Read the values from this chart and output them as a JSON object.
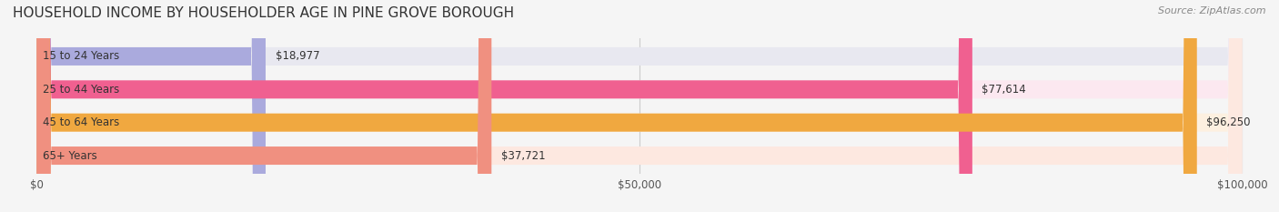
{
  "title": "HOUSEHOLD INCOME BY HOUSEHOLDER AGE IN PINE GROVE BOROUGH",
  "source": "Source: ZipAtlas.com",
  "categories": [
    "15 to 24 Years",
    "25 to 44 Years",
    "45 to 64 Years",
    "65+ Years"
  ],
  "values": [
    18977,
    77614,
    96250,
    37721
  ],
  "bar_colors": [
    "#aaaadd",
    "#f06090",
    "#f0a840",
    "#f09080"
  ],
  "bar_bg_colors": [
    "#e8e8f0",
    "#fce8f0",
    "#fdf0e0",
    "#fde8e0"
  ],
  "value_labels": [
    "$18,977",
    "$77,614",
    "$96,250",
    "$37,721"
  ],
  "xlim": [
    0,
    100000
  ],
  "xticks": [
    0,
    50000,
    100000
  ],
  "xtick_labels": [
    "$0",
    "$50,000",
    "$100,000"
  ],
  "title_fontsize": 11,
  "source_fontsize": 8,
  "label_fontsize": 8.5,
  "value_fontsize": 8.5,
  "bar_height": 0.55
}
